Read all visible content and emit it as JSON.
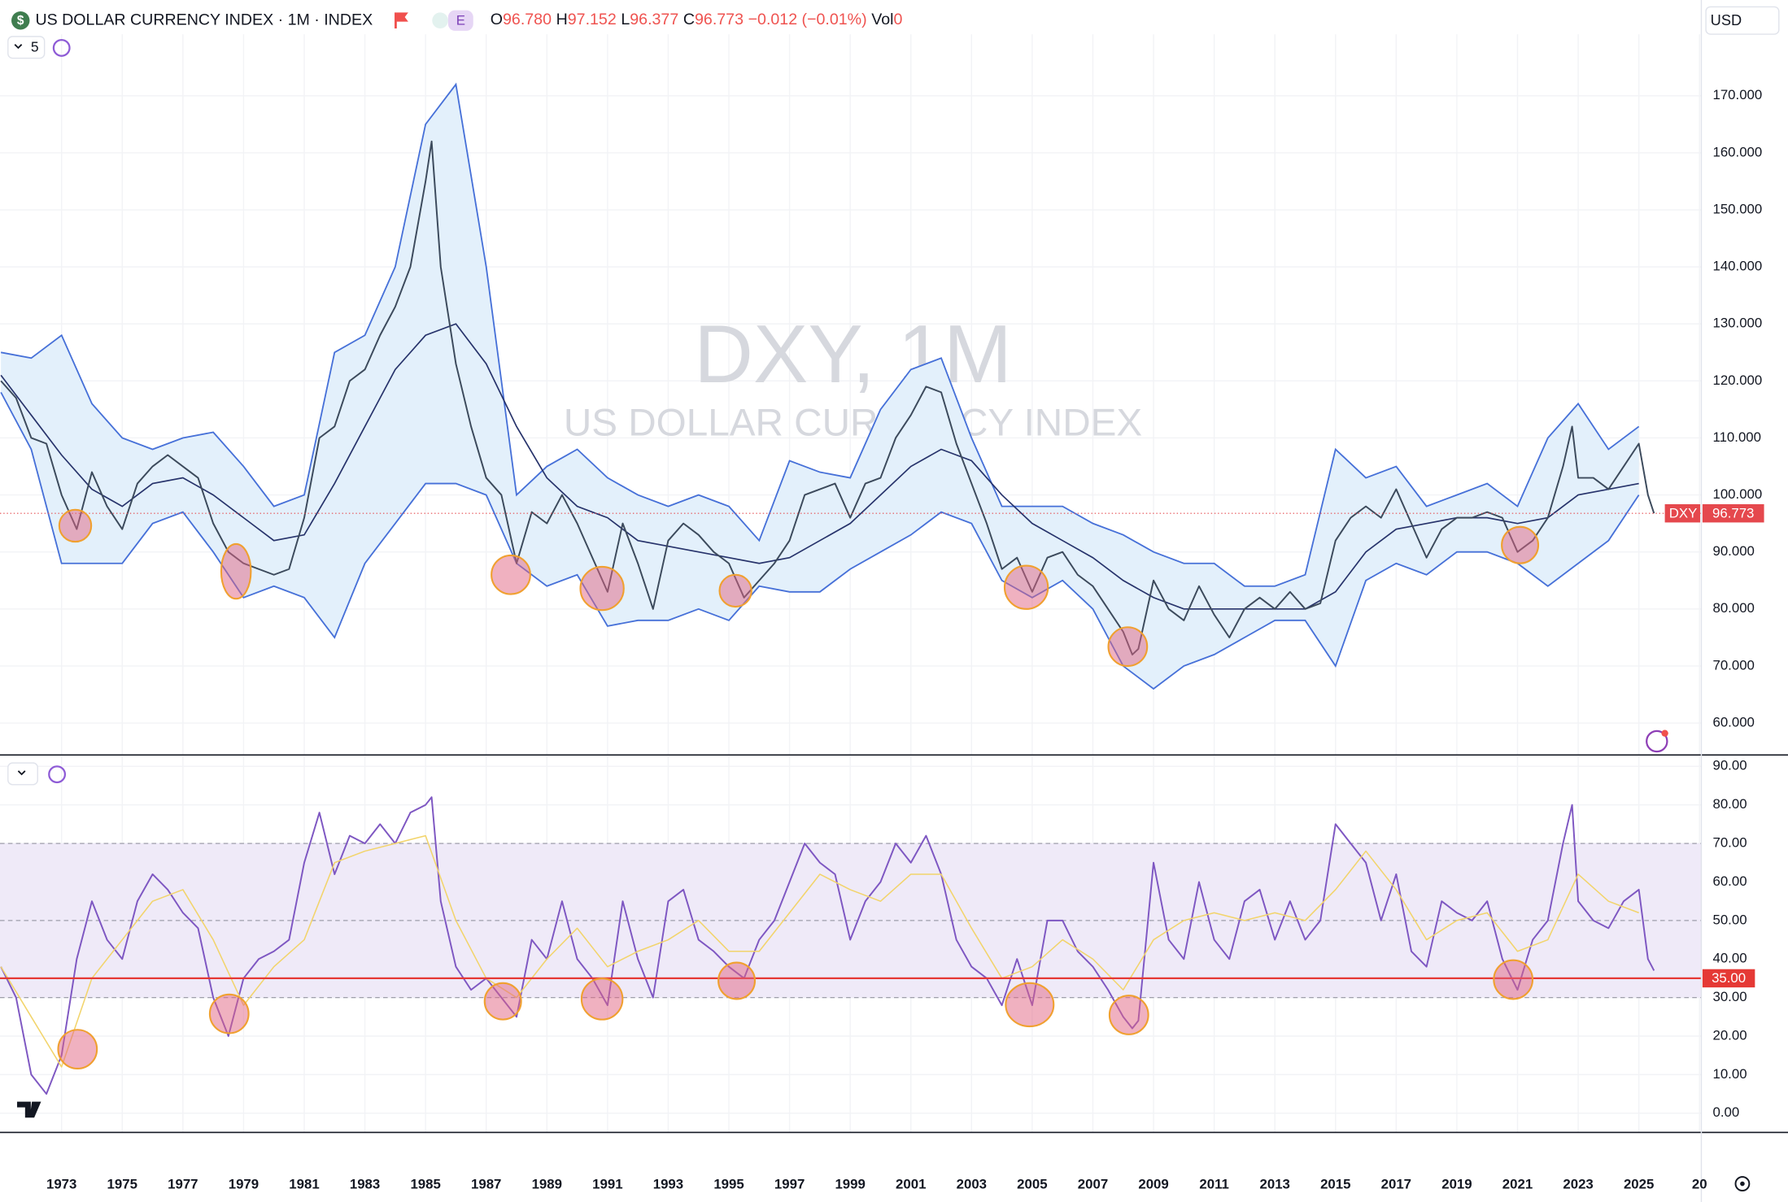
{
  "header": {
    "title": "US DOLLAR CURRENCY INDEX · 1M · INDEX",
    "badge": "E",
    "open_label": "O",
    "open": "96.780",
    "high_label": "H",
    "high": "97.152",
    "low_label": "L",
    "low": "96.377",
    "close_label": "C",
    "close": "96.773",
    "change": "−0.012 (−0.01%)",
    "volume_label": "Vol",
    "volume": "0",
    "currency": "USD",
    "indicator_count": "5",
    "watermark": "DXY, 1M",
    "watermark_subtitle": "US DOLLAR CURRENCY INDEX"
  },
  "chart_data": [
    {
      "type": "line",
      "xlim": [
        1970.97,
        2027.06
      ],
      "ylim": [
        54.4,
        180.8
      ],
      "yticks": [
        {
          "value": 60,
          "label": "60.000"
        },
        {
          "value": 70,
          "label": "70.000"
        },
        {
          "value": 80,
          "label": "80.000"
        },
        {
          "value": 90,
          "label": "90.000"
        },
        {
          "value": 100,
          "label": "100.000"
        },
        {
          "value": 110,
          "label": "110.000"
        },
        {
          "value": 120,
          "label": "120.000"
        },
        {
          "value": 130,
          "label": "130.000"
        },
        {
          "value": 140,
          "label": "140.000"
        },
        {
          "value": 150,
          "label": "150.000"
        },
        {
          "value": 160,
          "label": "160.000"
        },
        {
          "value": 170,
          "label": "170.000"
        }
      ],
      "grid": true,
      "series": [
        {
          "name": "DXY",
          "color": "#3c4a5c",
          "x": [
            1971,
            1971.5,
            1972,
            1972.5,
            1973,
            1973.5,
            1974,
            1974.5,
            1975,
            1975.5,
            1976,
            1976.5,
            1977,
            1977.5,
            1978,
            1978.5,
            1979,
            1979.5,
            1980,
            1980.5,
            1981,
            1981.5,
            1982,
            1982.5,
            1983,
            1983.5,
            1984,
            1984.5,
            1985,
            1985.2,
            1985.5,
            1986,
            1986.5,
            1987,
            1987.5,
            1988,
            1988.5,
            1989,
            1989.5,
            1990,
            1990.5,
            1991,
            1991.5,
            1992,
            1992.5,
            1993,
            1993.5,
            1994,
            1994.5,
            1995,
            1995.5,
            1996,
            1996.5,
            1997,
            1997.5,
            1998,
            1998.5,
            1999,
            1999.5,
            2000,
            2000.5,
            2001,
            2001.5,
            2002,
            2002.5,
            2003,
            2003.5,
            2004,
            2004.5,
            2005,
            2005.5,
            2006,
            2006.5,
            2007,
            2007.5,
            2008,
            2008.3,
            2008.5,
            2009,
            2009.5,
            2010,
            2010.5,
            2011,
            2011.5,
            2012,
            2012.5,
            2013,
            2013.5,
            2014,
            2014.5,
            2015,
            2015.5,
            2016,
            2016.5,
            2017,
            2017.5,
            2018,
            2018.5,
            2019,
            2019.5,
            2020,
            2020.5,
            2021,
            2021.5,
            2022,
            2022.5,
            2022.8,
            2023,
            2023.5,
            2024,
            2024.5,
            2025,
            2025.3,
            2025.5
          ],
          "values": [
            120,
            117,
            110,
            109,
            100,
            94,
            104,
            98,
            94,
            102,
            105,
            107,
            105,
            103,
            95,
            90,
            88,
            87,
            86,
            87,
            96,
            110,
            112,
            120,
            122,
            128,
            133,
            140,
            155,
            162,
            140,
            123,
            112,
            103,
            100,
            88,
            97,
            95,
            100,
            95,
            89,
            83,
            95,
            88,
            80,
            92,
            95,
            93,
            90,
            88,
            82,
            85,
            88,
            92,
            100,
            101,
            102,
            96,
            102,
            103,
            110,
            114,
            119,
            118,
            109,
            102,
            95,
            87,
            89,
            83,
            89,
            90,
            86,
            84,
            80,
            76,
            72,
            73,
            85,
            80,
            78,
            84,
            79,
            75,
            80,
            82,
            80,
            83,
            80,
            81,
            92,
            96,
            98,
            96,
            101,
            95,
            89,
            94,
            96,
            96,
            97,
            96,
            90,
            92,
            96,
            105,
            112,
            103,
            103,
            101,
            105,
            109,
            100,
            96.773
          ]
        }
      ],
      "bands": {
        "line_color": "#4670d8",
        "fill": "#e3f0fb",
        "middle_color": "#27336b",
        "x": [
          1971,
          1972,
          1973,
          1974,
          1975,
          1976,
          1977,
          1978,
          1979,
          1980,
          1981,
          1982,
          1983,
          1984,
          1985,
          1986,
          1987,
          1988,
          1989,
          1990,
          1991,
          1992,
          1993,
          1994,
          1995,
          1996,
          1997,
          1998,
          1999,
          2000,
          2001,
          2002,
          2003,
          2004,
          2005,
          2006,
          2007,
          2008,
          2009,
          2010,
          2011,
          2012,
          2013,
          2014,
          2015,
          2016,
          2017,
          2018,
          2019,
          2020,
          2021,
          2022,
          2023,
          2024,
          2025
        ],
        "upper": [
          125,
          124,
          128,
          116,
          110,
          108,
          110,
          111,
          105,
          98,
          100,
          125,
          128,
          140,
          165,
          172,
          140,
          100,
          105,
          108,
          103,
          100,
          98,
          100,
          98,
          92,
          106,
          104,
          103,
          115,
          122,
          124,
          110,
          98,
          98,
          98,
          95,
          93,
          90,
          88,
          88,
          84,
          84,
          86,
          108,
          103,
          105,
          98,
          100,
          102,
          98,
          110,
          116,
          108,
          112
        ],
        "middle": [
          121,
          114,
          107,
          101,
          98,
          102,
          103,
          100,
          96,
          92,
          93,
          102,
          112,
          122,
          128,
          130,
          123,
          112,
          103,
          98,
          96,
          92,
          91,
          90,
          89,
          88,
          89,
          92,
          95,
          100,
          105,
          108,
          106,
          100,
          95,
          92,
          89,
          85,
          82,
          80,
          80,
          80,
          80,
          80,
          83,
          90,
          94,
          95,
          96,
          96,
          95,
          96,
          100,
          101,
          102
        ],
        "lower": [
          118,
          108,
          88,
          88,
          88,
          95,
          97,
          90,
          82,
          84,
          82,
          75,
          88,
          95,
          102,
          102,
          100,
          88,
          84,
          86,
          77,
          78,
          78,
          80,
          78,
          84,
          83,
          83,
          87,
          90,
          93,
          97,
          95,
          85,
          82,
          85,
          80,
          70,
          66,
          70,
          72,
          75,
          78,
          78,
          70,
          85,
          88,
          86,
          90,
          90,
          88,
          84,
          88,
          92,
          100
        ]
      },
      "last_price": {
        "name": "DXY",
        "value": 96.773,
        "label": "96.773",
        "color": "#e5484d"
      }
    },
    {
      "type": "line",
      "xlim": [
        1970.97,
        2027.06
      ],
      "ylim": [
        -5,
        92.66
      ],
      "xticks": [
        1973,
        1975,
        1977,
        1979,
        1981,
        1983,
        1985,
        1987,
        1989,
        1991,
        1993,
        1995,
        1997,
        1999,
        2001,
        2003,
        2005,
        2007,
        2009,
        2011,
        2013,
        2015,
        2017,
        2019,
        2021,
        2023,
        2025,
        {
          "value": 2027,
          "label": "20"
        }
      ],
      "yticks": [
        {
          "value": 0,
          "label": "0.00"
        },
        {
          "value": 10,
          "label": "10.00"
        },
        {
          "value": 20,
          "label": "20.00"
        },
        {
          "value": 30,
          "label": "30.00"
        },
        {
          "value": 40,
          "label": "40.00"
        },
        {
          "value": 50,
          "label": "50.00"
        },
        {
          "value": 60,
          "label": "60.00"
        },
        {
          "value": 70,
          "label": "70.00"
        },
        {
          "value": 80,
          "label": "80.00"
        },
        {
          "value": 90,
          "label": "90.00"
        }
      ],
      "grid": true,
      "series": [
        {
          "color": "#7e57c2",
          "x": [
            1971,
            1971.5,
            1972,
            1972.5,
            1973,
            1973.5,
            1974,
            1974.5,
            1975,
            1975.5,
            1976,
            1976.5,
            1977,
            1977.5,
            1978,
            1978.5,
            1979,
            1979.5,
            1980,
            1980.5,
            1981,
            1981.5,
            1982,
            1982.5,
            1983,
            1983.5,
            1984,
            1984.5,
            1985,
            1985.2,
            1985.5,
            1986,
            1986.5,
            1987,
            1987.5,
            1988,
            1988.5,
            1989,
            1989.5,
            1990,
            1990.5,
            1991,
            1991.5,
            1992,
            1992.5,
            1993,
            1993.5,
            1994,
            1994.5,
            1995,
            1995.5,
            1996,
            1996.5,
            1997,
            1997.5,
            1998,
            1998.5,
            1999,
            1999.5,
            2000,
            2000.5,
            2001,
            2001.5,
            2002,
            2002.5,
            2003,
            2003.5,
            2004,
            2004.5,
            2005,
            2005.5,
            2006,
            2006.5,
            2007,
            2007.5,
            2008,
            2008.3,
            2008.5,
            2009,
            2009.5,
            2010,
            2010.5,
            2011,
            2011.5,
            2012,
            2012.5,
            2013,
            2013.5,
            2014,
            2014.5,
            2015,
            2015.5,
            2016,
            2016.5,
            2017,
            2017.5,
            2018,
            2018.5,
            2019,
            2019.5,
            2020,
            2020.5,
            2021,
            2021.5,
            2022,
            2022.5,
            2022.8,
            2023,
            2023.5,
            2024,
            2024.5,
            2025,
            2025.3,
            2025.5
          ],
          "values": [
            38,
            30,
            10,
            5,
            15,
            40,
            55,
            45,
            40,
            55,
            62,
            58,
            52,
            48,
            30,
            20,
            35,
            40,
            42,
            45,
            65,
            78,
            62,
            72,
            70,
            75,
            70,
            78,
            80,
            82,
            55,
            38,
            32,
            35,
            30,
            25,
            45,
            40,
            55,
            40,
            35,
            28,
            55,
            40,
            30,
            55,
            58,
            45,
            42,
            38,
            35,
            45,
            50,
            60,
            70,
            65,
            62,
            45,
            55,
            60,
            70,
            65,
            72,
            62,
            45,
            38,
            35,
            28,
            40,
            28,
            50,
            50,
            42,
            38,
            32,
            25,
            22,
            24,
            65,
            45,
            40,
            60,
            45,
            40,
            55,
            58,
            45,
            55,
            45,
            50,
            75,
            70,
            65,
            50,
            62,
            42,
            38,
            55,
            52,
            50,
            55,
            40,
            32,
            45,
            50,
            70,
            80,
            55,
            50,
            48,
            55,
            58,
            40,
            37
          ]
        },
        {
          "color": "#f2d46b",
          "x": [
            1971,
            1972,
            1973,
            1974,
            1975,
            1976,
            1977,
            1978,
            1979,
            1980,
            1981,
            1982,
            1983,
            1984,
            1985,
            1986,
            1987,
            1988,
            1989,
            1990,
            1991,
            1992,
            1993,
            1994,
            1995,
            1996,
            1997,
            1998,
            1999,
            2000,
            2001,
            2002,
            2003,
            2004,
            2005,
            2006,
            2007,
            2008,
            2009,
            2010,
            2011,
            2012,
            2013,
            2014,
            2015,
            2016,
            2017,
            2018,
            2019,
            2020,
            2021,
            2022,
            2023,
            2024,
            2025
          ],
          "values": [
            38,
            25,
            12,
            35,
            45,
            55,
            58,
            45,
            28,
            38,
            45,
            65,
            68,
            70,
            72,
            50,
            35,
            30,
            40,
            48,
            38,
            42,
            45,
            50,
            42,
            42,
            52,
            62,
            58,
            55,
            62,
            62,
            48,
            35,
            38,
            45,
            40,
            32,
            45,
            50,
            52,
            50,
            52,
            50,
            58,
            68,
            58,
            45,
            50,
            52,
            42,
            45,
            62,
            55,
            52
          ]
        }
      ],
      "band": {
        "upper": 70,
        "middle": 50,
        "lower": 30,
        "fill": "#efeaf8",
        "line_color": "#9e9eaa"
      },
      "alert": {
        "value": 35,
        "label": "35.00",
        "color": "#e53935"
      }
    }
  ]
}
